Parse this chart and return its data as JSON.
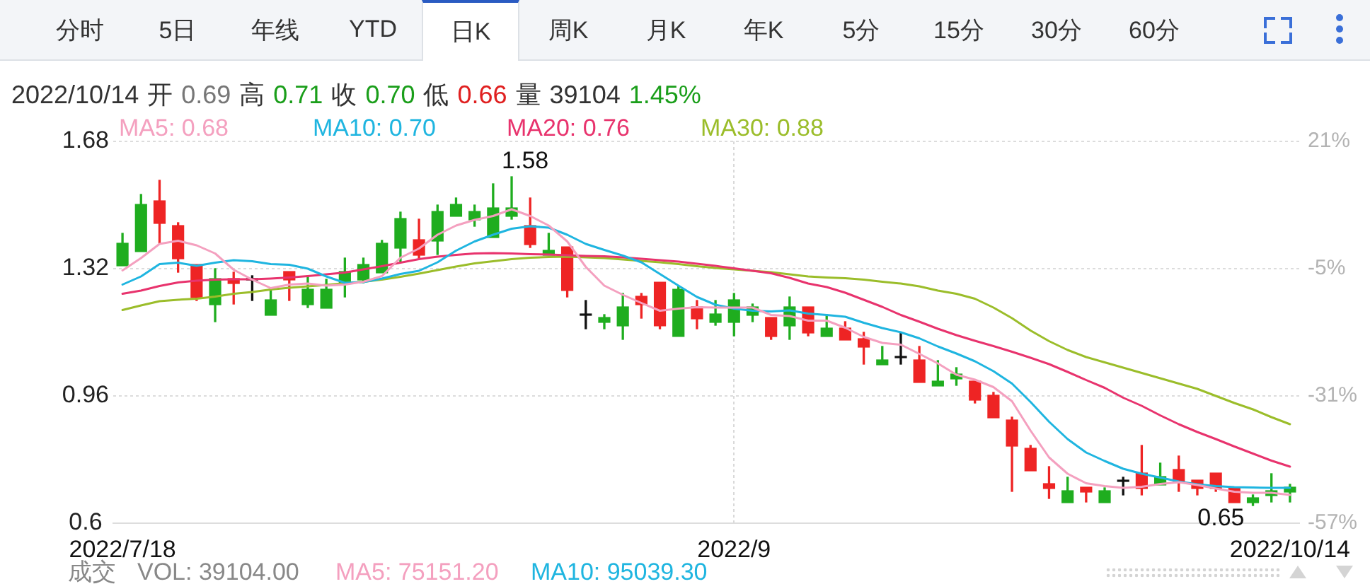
{
  "chart_data": {
    "type": "candlestick",
    "subtitle": "2022/10/14 开 0.69 高 0.71 收 0.70 低 0.66 量 39104 1.45%",
    "categories": [
      "2022/7/18",
      null,
      null,
      null,
      null,
      null,
      null,
      null,
      null,
      null,
      null,
      null,
      null,
      null,
      null,
      null,
      null,
      null,
      null,
      null,
      null,
      null,
      null,
      null,
      null,
      null,
      null,
      null,
      null,
      null,
      null,
      null,
      null,
      "2022/9",
      null,
      null,
      null,
      null,
      null,
      null,
      null,
      null,
      null,
      null,
      null,
      null,
      null,
      null,
      null,
      null,
      null,
      null,
      null,
      null,
      null,
      null,
      null,
      null,
      null,
      null,
      null,
      null,
      null,
      "2022/10/14"
    ],
    "ohlc": [
      [
        1.33,
        1.42,
        1.33,
        1.39
      ],
      [
        1.37,
        1.53,
        1.37,
        1.5
      ],
      [
        1.51,
        1.57,
        1.39,
        1.45
      ],
      [
        1.44,
        1.45,
        1.31,
        1.35
      ],
      [
        1.33,
        1.33,
        1.23,
        1.24
      ],
      [
        1.22,
        1.32,
        1.17,
        1.29
      ],
      [
        1.29,
        1.31,
        1.22,
        1.28
      ],
      [
        1.29,
        1.3,
        1.23,
        1.29
      ],
      [
        1.19,
        1.26,
        1.19,
        1.23
      ],
      [
        1.31,
        1.31,
        1.23,
        1.29
      ],
      [
        1.22,
        1.3,
        1.21,
        1.26
      ],
      [
        1.21,
        1.29,
        1.21,
        1.26
      ],
      [
        1.28,
        1.35,
        1.24,
        1.31
      ],
      [
        1.29,
        1.35,
        1.28,
        1.33
      ],
      [
        1.31,
        1.4,
        1.31,
        1.39
      ],
      [
        1.38,
        1.48,
        1.34,
        1.46
      ],
      [
        1.4,
        1.46,
        1.35,
        1.36
      ],
      [
        1.4,
        1.5,
        1.36,
        1.48
      ],
      [
        1.47,
        1.52,
        1.47,
        1.5
      ],
      [
        1.46,
        1.5,
        1.44,
        1.48
      ],
      [
        1.41,
        1.56,
        1.41,
        1.49
      ],
      [
        1.47,
        1.58,
        1.46,
        1.49
      ],
      [
        1.44,
        1.52,
        1.38,
        1.39
      ],
      [
        1.36,
        1.42,
        1.36,
        1.37
      ],
      [
        1.38,
        1.38,
        1.24,
        1.26
      ],
      [
        1.19,
        1.23,
        1.15,
        1.19
      ],
      [
        1.17,
        1.19,
        1.15,
        1.18
      ],
      [
        1.16,
        1.25,
        1.12,
        1.21
      ],
      [
        1.24,
        1.25,
        1.18,
        1.22
      ],
      [
        1.28,
        1.28,
        1.15,
        1.16
      ],
      [
        1.13,
        1.27,
        1.13,
        1.26
      ],
      [
        1.21,
        1.23,
        1.15,
        1.18
      ],
      [
        1.17,
        1.23,
        1.16,
        1.19
      ],
      [
        1.17,
        1.25,
        1.13,
        1.23
      ],
      [
        1.19,
        1.22,
        1.17,
        1.21
      ],
      [
        1.18,
        1.18,
        1.12,
        1.13
      ],
      [
        1.16,
        1.24,
        1.12,
        1.21
      ],
      [
        1.21,
        1.21,
        1.13,
        1.14
      ],
      [
        1.13,
        1.19,
        1.13,
        1.15
      ],
      [
        1.15,
        1.17,
        1.12,
        1.12
      ],
      [
        1.12,
        1.14,
        1.05,
        1.1
      ],
      [
        1.05,
        1.1,
        1.05,
        1.06
      ],
      [
        1.07,
        1.14,
        1.05,
        1.07
      ],
      [
        1.06,
        1.1,
        1.0,
        1.0
      ],
      [
        0.99,
        1.06,
        0.99,
        1.0
      ],
      [
        1.01,
        1.04,
        0.99,
        1.02
      ],
      [
        1.0,
        1.0,
        0.94,
        0.95
      ],
      [
        0.96,
        0.97,
        0.9,
        0.9
      ],
      [
        0.89,
        0.9,
        0.69,
        0.82
      ],
      [
        0.81,
        0.82,
        0.75,
        0.75
      ],
      [
        0.71,
        0.76,
        0.67,
        0.7
      ],
      [
        0.66,
        0.73,
        0.66,
        0.69
      ],
      [
        0.7,
        0.7,
        0.66,
        0.69
      ],
      [
        0.66,
        0.7,
        0.66,
        0.69
      ],
      [
        0.72,
        0.73,
        0.68,
        0.72
      ],
      [
        0.74,
        0.82,
        0.68,
        0.7
      ],
      [
        0.71,
        0.77,
        0.71,
        0.73
      ],
      [
        0.75,
        0.79,
        0.69,
        0.72
      ],
      [
        0.72,
        0.72,
        0.68,
        0.7
      ],
      [
        0.74,
        0.74,
        0.69,
        0.7
      ],
      [
        0.7,
        0.7,
        0.66,
        0.66
      ],
      [
        0.66,
        0.68,
        0.65,
        0.67
      ],
      [
        0.68,
        0.74,
        0.66,
        0.69
      ],
      [
        0.69,
        0.71,
        0.66,
        0.7
      ]
    ],
    "colors": [
      "#1fad1f",
      "#1fad1f",
      "#ee2424",
      "#ee2424",
      "#ee2424",
      "#1fad1f",
      "#ee2424",
      "#111111",
      "#1fad1f",
      "#ee2424",
      "#1fad1f",
      "#1fad1f",
      "#1fad1f",
      "#1fad1f",
      "#1fad1f",
      "#1fad1f",
      "#ee2424",
      "#1fad1f",
      "#1fad1f",
      "#1fad1f",
      "#1fad1f",
      "#1fad1f",
      "#ee2424",
      "#1fad1f",
      "#ee2424",
      "#111111",
      "#1fad1f",
      "#1fad1f",
      "#ee2424",
      "#ee2424",
      "#1fad1f",
      "#ee2424",
      "#1fad1f",
      "#1fad1f",
      "#1fad1f",
      "#ee2424",
      "#1fad1f",
      "#ee2424",
      "#1fad1f",
      "#ee2424",
      "#ee2424",
      "#1fad1f",
      "#111111",
      "#ee2424",
      "#1fad1f",
      "#1fad1f",
      "#ee2424",
      "#ee2424",
      "#ee2424",
      "#ee2424",
      "#ee2424",
      "#1fad1f",
      "#ee2424",
      "#1fad1f",
      "#111111",
      "#ee2424",
      "#1fad1f",
      "#ee2424",
      "#ee2424",
      "#ee2424",
      "#ee2424",
      "#1fad1f",
      "#1fad1f",
      "#1fad1f"
    ],
    "series": [
      {
        "name": "MA5: 0.68",
        "color": "#f4a0bf",
        "type": "line",
        "values": [
          1.315,
          1.35,
          1.39,
          1.399,
          1.386,
          1.363,
          1.317,
          1.289,
          1.265,
          1.275,
          1.278,
          1.272,
          1.275,
          1.283,
          1.299,
          1.351,
          1.377,
          1.416,
          1.442,
          1.458,
          1.469,
          1.488,
          1.469,
          1.442,
          1.397,
          1.325,
          1.272,
          1.246,
          1.223,
          1.201,
          1.207,
          1.211,
          1.21,
          1.21,
          1.21,
          1.189,
          1.186,
          1.173,
          1.173,
          1.153,
          1.127,
          1.11,
          1.105,
          1.079,
          1.052,
          1.02,
          1.006,
          0.985,
          0.945,
          0.862,
          0.786,
          0.74,
          0.713,
          0.705,
          0.7,
          0.703,
          0.711,
          0.716,
          0.708,
          0.698,
          0.689,
          0.686,
          0.686,
          0.68
        ]
      },
      {
        "name": "MA10: 0.70",
        "color": "#1fb5e0",
        "type": "line",
        "values": [
          1.275,
          1.298,
          1.333,
          1.337,
          1.328,
          1.337,
          1.344,
          1.341,
          1.333,
          1.331,
          1.32,
          1.298,
          1.28,
          1.282,
          1.292,
          1.305,
          1.314,
          1.338,
          1.371,
          1.397,
          1.416,
          1.433,
          1.44,
          1.436,
          1.416,
          1.39,
          1.373,
          1.357,
          1.338,
          1.305,
          1.272,
          1.24,
          1.218,
          1.207,
          1.201,
          1.199,
          1.202,
          1.193,
          1.189,
          1.184,
          1.167,
          1.152,
          1.14,
          1.123,
          1.1,
          1.08,
          1.058,
          1.03,
          0.995,
          0.943,
          0.887,
          0.838,
          0.8,
          0.776,
          0.754,
          0.74,
          0.729,
          0.718,
          0.71,
          0.705,
          0.702,
          0.701,
          0.7,
          0.7
        ]
      },
      {
        "name": "MA20: 0.76",
        "color": "#e8336d",
        "type": "line",
        "values": [
          1.249,
          1.258,
          1.271,
          1.281,
          1.286,
          1.289,
          1.29,
          1.29,
          1.292,
          1.295,
          1.299,
          1.304,
          1.309,
          1.318,
          1.327,
          1.337,
          1.347,
          1.354,
          1.359,
          1.363,
          1.364,
          1.363,
          1.361,
          1.36,
          1.358,
          1.356,
          1.355,
          1.352,
          1.348,
          1.344,
          1.34,
          1.334,
          1.328,
          1.321,
          1.314,
          1.307,
          1.294,
          1.278,
          1.268,
          1.252,
          1.232,
          1.212,
          1.189,
          1.17,
          1.15,
          1.132,
          1.116,
          1.101,
          1.085,
          1.068,
          1.05,
          1.028,
          1.005,
          0.983,
          0.955,
          0.932,
          0.905,
          0.88,
          0.858,
          0.838,
          0.817,
          0.797,
          0.777,
          0.76
        ]
      },
      {
        "name": "MA30: 0.88",
        "color": "#9bbd2a",
        "type": "line",
        "values": [
          1.203,
          1.216,
          1.228,
          1.232,
          1.235,
          1.241,
          1.249,
          1.254,
          1.261,
          1.266,
          1.27,
          1.274,
          1.279,
          1.283,
          1.289,
          1.297,
          1.306,
          1.316,
          1.326,
          1.335,
          1.341,
          1.347,
          1.351,
          1.353,
          1.354,
          1.352,
          1.35,
          1.346,
          1.342,
          1.338,
          1.333,
          1.327,
          1.322,
          1.318,
          1.314,
          1.31,
          1.304,
          1.298,
          1.295,
          1.293,
          1.289,
          1.283,
          1.278,
          1.27,
          1.258,
          1.249,
          1.235,
          1.21,
          1.18,
          1.145,
          1.115,
          1.09,
          1.07,
          1.055,
          1.04,
          1.025,
          1.01,
          0.995,
          0.98,
          0.96,
          0.94,
          0.922,
          0.9,
          0.88
        ]
      }
    ],
    "ylim": [
      0.6,
      1.68
    ],
    "yticks": [
      0.6,
      0.96,
      1.32,
      1.68
    ],
    "y2lim": [
      -57,
      21
    ],
    "y2ticks": [
      {
        "value": -57,
        "label": "-57%"
      },
      {
        "value": -31,
        "label": "-31%"
      },
      {
        "value": -5,
        "label": "-5%"
      },
      {
        "value": 21,
        "label": "21%"
      }
    ],
    "grid": true,
    "legend": "top left",
    "annotations": [
      "分时 5日 年线 YTD 日K 周K 月K 年K 5分 15分 30分 60分",
      "成交 VOL: 39104.00 MA5: 75151.20 MA10: 95039.30",
      "1.58",
      "0.65"
    ]
  }
}
